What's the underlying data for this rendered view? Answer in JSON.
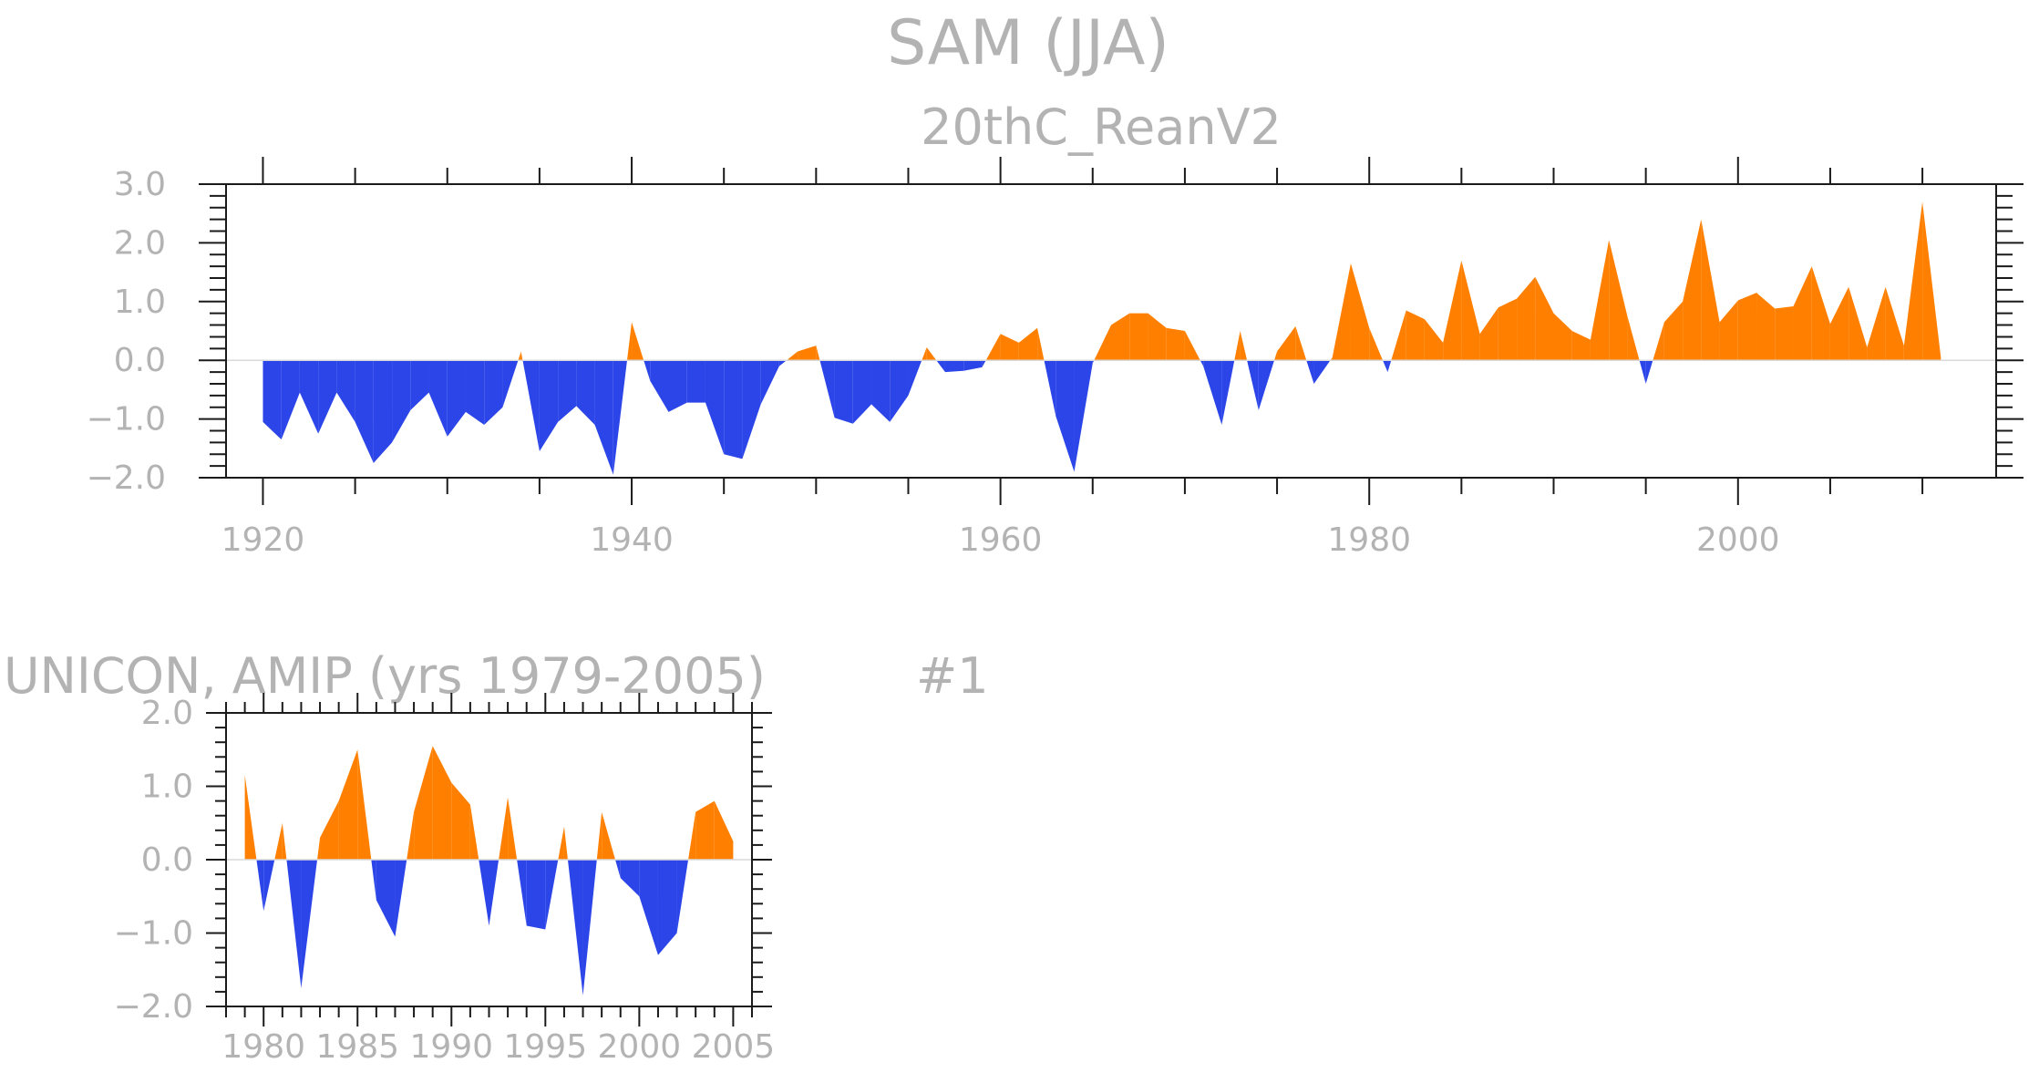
{
  "title": "SAM (JJA)",
  "colors": {
    "positive": "#ff8000",
    "negative": "#2b45e8",
    "text": "#b3b3b3",
    "frame": "#1a1a1a"
  },
  "chart_data": [
    {
      "type": "area",
      "subtitle": "20thC_ReanV2",
      "xlim": [
        1918,
        2014
      ],
      "ylim": [
        -2.0,
        3.0
      ],
      "xticks": [
        1920,
        1940,
        1960,
        1980,
        2000
      ],
      "yticks": [
        -2.0,
        -1.0,
        0.0,
        1.0,
        2.0,
        3.0
      ],
      "ytick_labels": [
        "-2.0",
        "-1.0",
        "0.0",
        "1.0",
        "2.0",
        "3.0"
      ],
      "x": [
        1920,
        1921,
        1922,
        1923,
        1924,
        1925,
        1926,
        1927,
        1928,
        1929,
        1930,
        1931,
        1932,
        1933,
        1934,
        1935,
        1936,
        1937,
        1938,
        1939,
        1940,
        1941,
        1942,
        1943,
        1944,
        1945,
        1946,
        1947,
        1948,
        1949,
        1950,
        1951,
        1952,
        1953,
        1954,
        1955,
        1956,
        1957,
        1958,
        1959,
        1960,
        1961,
        1962,
        1963,
        1964,
        1965,
        1966,
        1967,
        1968,
        1969,
        1970,
        1971,
        1972,
        1973,
        1974,
        1975,
        1976,
        1977,
        1978,
        1979,
        1980,
        1981,
        1982,
        1983,
        1984,
        1985,
        1986,
        1987,
        1988,
        1989,
        1990,
        1991,
        1992,
        1993,
        1994,
        1995,
        1996,
        1997,
        1998,
        1999,
        2000,
        2001,
        2002,
        2003,
        2004,
        2005,
        2006,
        2007,
        2008,
        2009,
        2010,
        2011
      ],
      "values": [
        -1.05,
        -1.35,
        -0.55,
        -1.25,
        -0.55,
        -1.05,
        -1.75,
        -1.4,
        -0.85,
        -0.55,
        -1.3,
        -0.88,
        -1.1,
        -0.8,
        0.15,
        -1.55,
        -1.05,
        -0.78,
        -1.1,
        -1.95,
        0.65,
        -0.35,
        -0.88,
        -0.72,
        -0.72,
        -1.6,
        -1.68,
        -0.75,
        -0.1,
        0.15,
        0.25,
        -0.98,
        -1.08,
        -0.75,
        -1.05,
        -0.6,
        0.22,
        -0.2,
        -0.18,
        -0.12,
        0.45,
        0.3,
        0.55,
        -0.95,
        -1.9,
        -0.05,
        0.6,
        0.8,
        0.8,
        0.55,
        0.5,
        -0.1,
        -1.1,
        0.5,
        -0.85,
        0.15,
        0.58,
        -0.4,
        0.05,
        1.65,
        0.55,
        -0.2,
        0.85,
        0.7,
        0.3,
        1.7,
        0.45,
        0.9,
        1.05,
        1.42,
        0.8,
        0.5,
        0.35,
        2.05,
        0.75,
        -0.4,
        0.65,
        1.0,
        2.4,
        0.65,
        1.02,
        1.15,
        0.88,
        0.92,
        1.6,
        0.62,
        1.25,
        0.22,
        1.25,
        0.25,
        2.7,
        0.05
      ]
    },
    {
      "type": "area",
      "subtitle": "UNICON, AMIP (yrs 1979-2005)",
      "label": "#1",
      "xlim": [
        1978,
        2006
      ],
      "ylim": [
        -2.0,
        2.0
      ],
      "xticks": [
        1980,
        1985,
        1990,
        1995,
        2000,
        2005
      ],
      "xtick_labels": [
        "1980",
        "1985",
        "1990",
        "1995",
        "2000",
        "2005"
      ],
      "yticks": [
        -2.0,
        -1.0,
        0.0,
        1.0,
        2.0
      ],
      "ytick_labels": [
        "-2.0",
        "-1.0",
        "0.0",
        "1.0",
        "2.0"
      ],
      "x": [
        1979,
        1980,
        1981,
        1982,
        1983,
        1984,
        1985,
        1986,
        1987,
        1988,
        1989,
        1990,
        1991,
        1992,
        1993,
        1994,
        1995,
        1996,
        1997,
        1998,
        1999,
        2000,
        2001,
        2002,
        2003,
        2004,
        2005
      ],
      "values": [
        1.15,
        -0.7,
        0.5,
        -1.75,
        0.3,
        0.8,
        1.5,
        -0.55,
        -1.05,
        0.65,
        1.55,
        1.05,
        0.75,
        -0.9,
        0.85,
        -0.9,
        -0.95,
        0.45,
        -1.85,
        0.65,
        -0.25,
        -0.5,
        -1.3,
        -1.0,
        0.65,
        0.8,
        0.25
      ]
    }
  ]
}
